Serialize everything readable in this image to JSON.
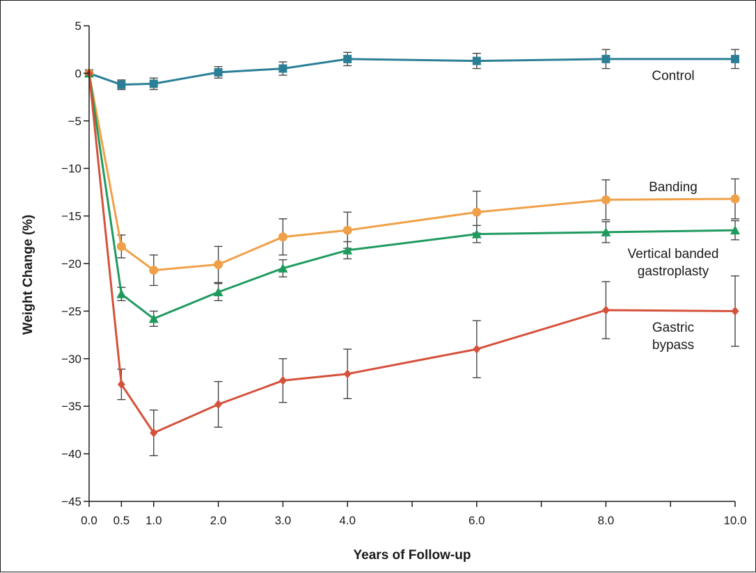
{
  "chart_data": {
    "type": "line",
    "xlabel": "Years of Follow-up",
    "ylabel": "Weight Change (%)",
    "ylim": [
      -45,
      5
    ],
    "xlim": [
      0,
      10
    ],
    "x_ticks": [
      0,
      0.5,
      1,
      2,
      3,
      4,
      6,
      8,
      10
    ],
    "x_tick_labels": [
      "0.0",
      "0.5",
      "1.0",
      "2.0",
      "3.0",
      "4.0",
      "6.0",
      "8.0",
      "10.0"
    ],
    "x_minor_ticks": [
      5,
      7,
      9
    ],
    "y_ticks": [
      5,
      0,
      -5,
      -10,
      -15,
      -20,
      -25,
      -30,
      -35,
      -40,
      -45
    ],
    "y_tick_labels": [
      "5",
      "0",
      "−5",
      "−10",
      "−15",
      "−20",
      "−25",
      "−30",
      "−35",
      "−40",
      "−45"
    ],
    "grid": false,
    "x": [
      0,
      0.5,
      1,
      2,
      3,
      4,
      6,
      8,
      10
    ],
    "series": [
      {
        "name": "Control",
        "label_lines": [
          "Control"
        ],
        "color": "#2a7f96",
        "marker": "square",
        "values": [
          0,
          -1.2,
          -1.1,
          0.1,
          0.5,
          1.5,
          1.3,
          1.5,
          1.5
        ],
        "err": [
          0,
          0.5,
          0.6,
          0.6,
          0.7,
          0.7,
          0.8,
          1.0,
          1.0
        ]
      },
      {
        "name": "Banding",
        "label_lines": [
          "Banding"
        ],
        "color": "#f0a048",
        "marker": "circle",
        "values": [
          0,
          -18.2,
          -20.7,
          -20.1,
          -17.2,
          -16.5,
          -14.6,
          -13.3,
          -13.2
        ],
        "err": [
          0,
          1.2,
          1.6,
          1.9,
          1.9,
          1.9,
          2.2,
          2.1,
          2.1
        ]
      },
      {
        "name": "Vertical banded gastroplasty",
        "label_lines": [
          "Vertical banded",
          "gastroplasty"
        ],
        "color": "#1f9a5f",
        "marker": "triangle",
        "values": [
          0,
          -23.2,
          -25.8,
          -23.0,
          -20.5,
          -18.6,
          -16.9,
          -16.7,
          -16.5
        ],
        "err": [
          0,
          0.7,
          0.8,
          0.9,
          0.9,
          0.9,
          0.9,
          1.1,
          1.0
        ]
      },
      {
        "name": "Gastric bypass",
        "label_lines": [
          "Gastric",
          "bypass"
        ],
        "color": "#d4513b",
        "marker": "diamond",
        "values": [
          0,
          -32.7,
          -37.8,
          -34.8,
          -32.3,
          -31.6,
          -29.0,
          -24.9,
          -25.0
        ],
        "err": [
          0,
          1.6,
          2.4,
          2.4,
          2.3,
          2.6,
          3.0,
          3.0,
          3.7
        ]
      }
    ]
  }
}
